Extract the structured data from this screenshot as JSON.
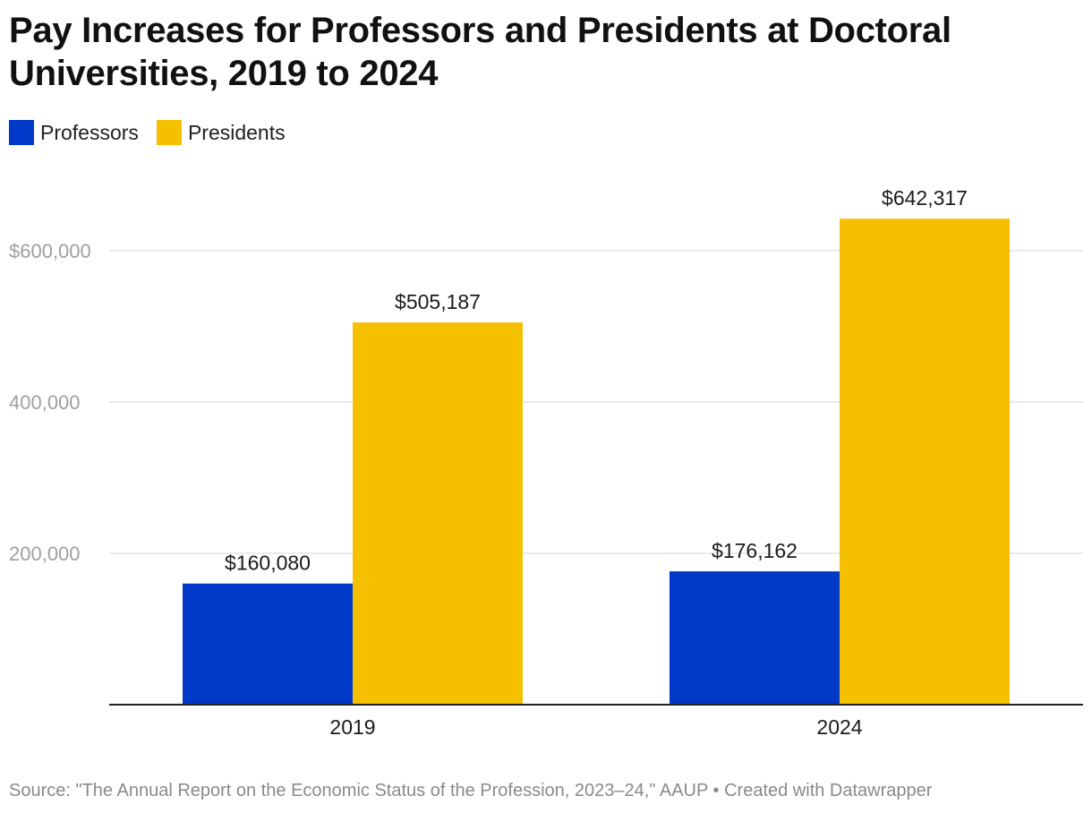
{
  "title": "Pay Increases for Professors and Presidents at Doctoral Universities, 2019 to 2024",
  "source": "Source: \"The Annual Report on the Economic Status of the Profession, 2023–24,\" AAUP • Created with Datawrapper",
  "chart_data": {
    "type": "bar",
    "title": "Pay Increases for Professors and Presidents at Doctoral Universities, 2019 to 2024",
    "categories": [
      "2019",
      "2024"
    ],
    "series": [
      {
        "name": "Professors",
        "color": "#0039c8",
        "values": [
          160080,
          176162
        ],
        "labels": [
          "$160,080",
          "$176,162"
        ]
      },
      {
        "name": "Presidents",
        "color": "#f5c000",
        "values": [
          505187,
          642317
        ],
        "labels": [
          "$505,187",
          "$642,317"
        ]
      }
    ],
    "yticks": [
      200000,
      400000,
      600000
    ],
    "ytick_labels": [
      "200,000",
      "400,000",
      "$600,000"
    ],
    "ylim": [
      0,
      700000
    ],
    "grid": true,
    "xlabel": "",
    "ylabel": "",
    "legend": "top-left"
  }
}
